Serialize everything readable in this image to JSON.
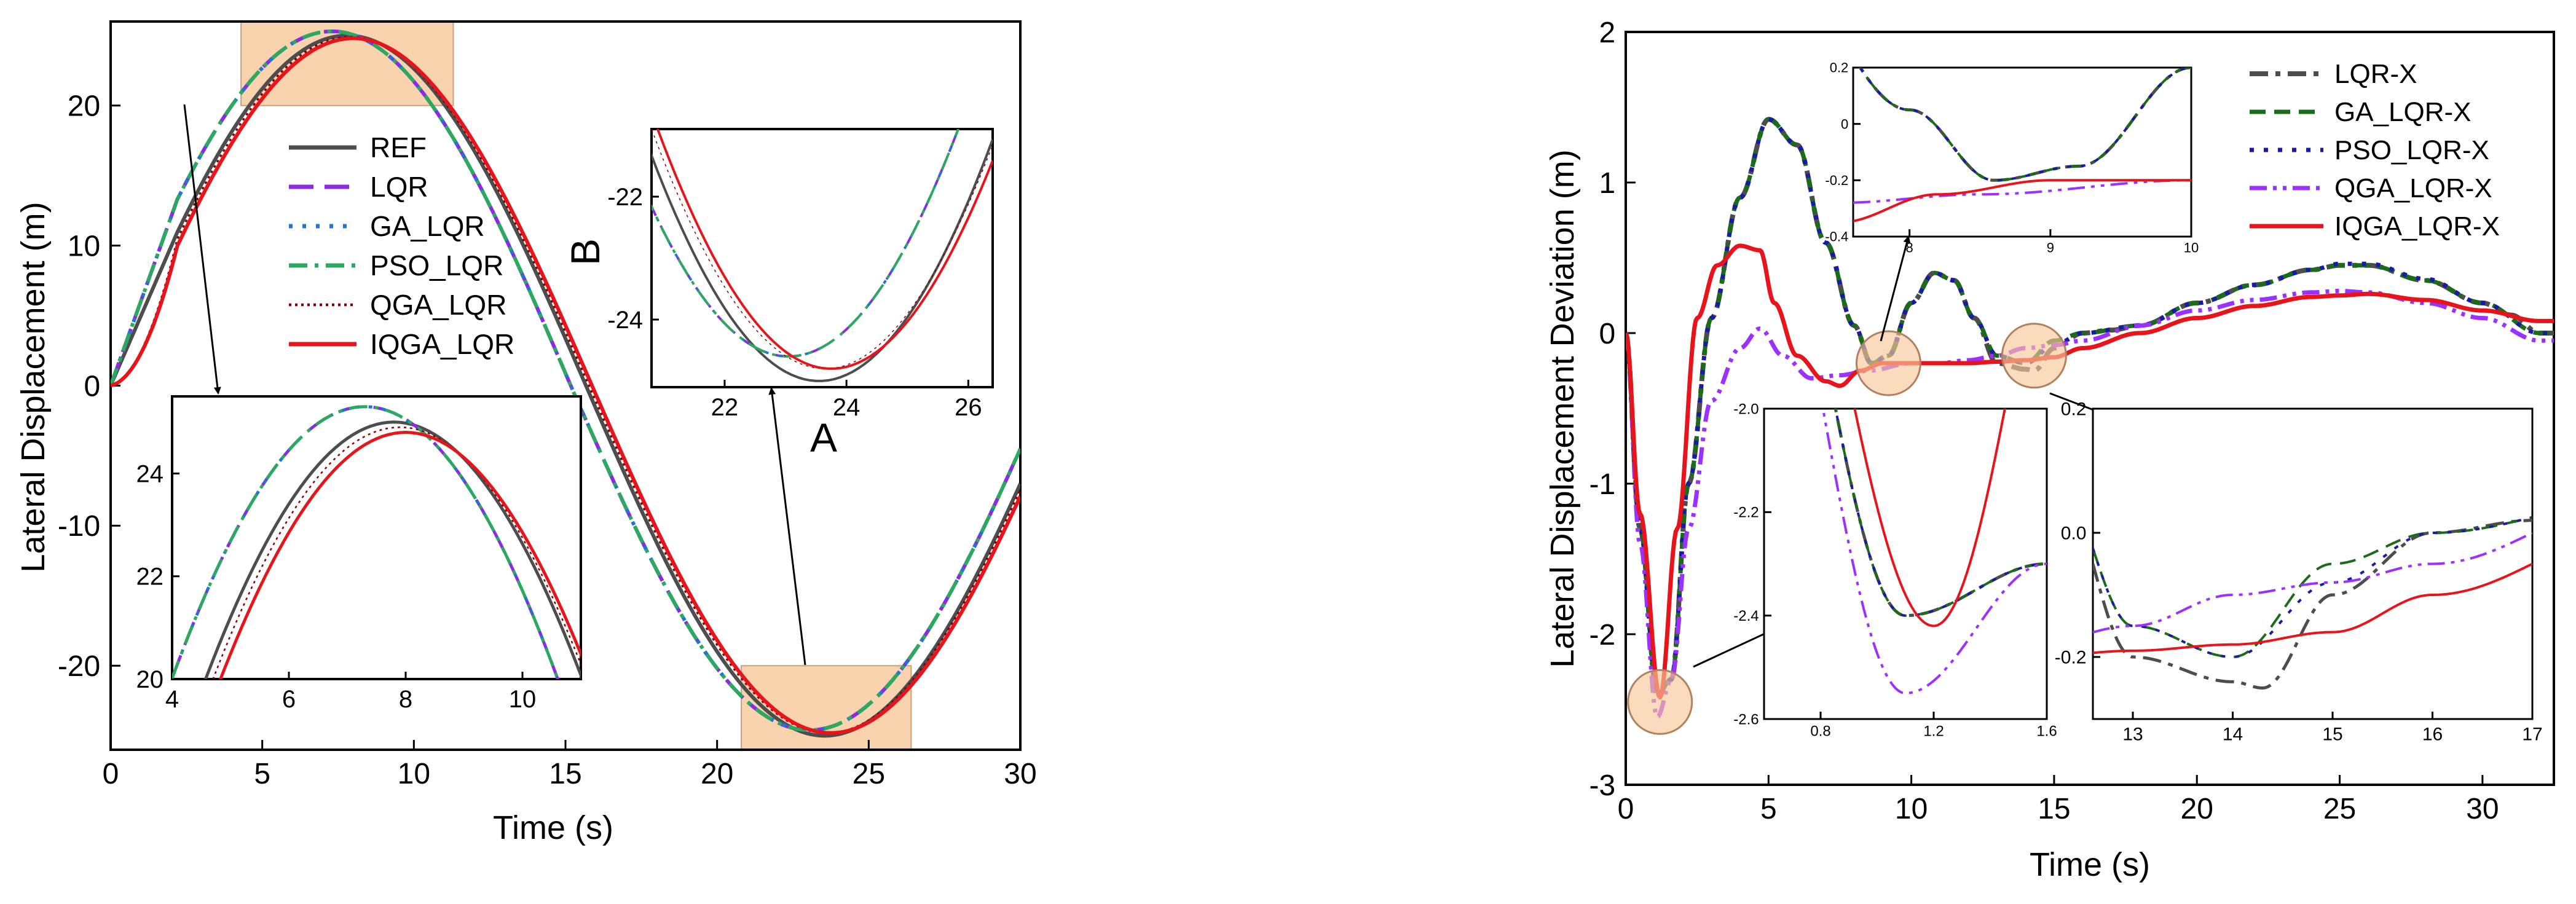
{
  "colors": {
    "REF": "#4d4d4d",
    "LQR": "#8a2be2",
    "GA_LQR": "#1f77d0",
    "PSO_LQR": "#2ca860",
    "QGA_LQR": "#8b0000",
    "IQGA_LQR": "#e8141b",
    "LQR-X": "#4d4d4d",
    "GA_LQR-X": "#1a6b1a",
    "PSO_LQR-X": "#1a1aa8",
    "QGA_LQR-X": "#9b30ff",
    "IQGA_LQR-X": "#e8141b",
    "highlight": "#f8c89a"
  },
  "chart_data": [
    {
      "id": "left-main",
      "type": "line",
      "xlabel": "Time (s)",
      "ylabel": "Lateral Displacement (m)",
      "xlim": [
        0,
        30
      ],
      "ylim": [
        -26,
        26
      ],
      "xticks": [
        "0",
        "5",
        "10",
        "15",
        "20",
        "25",
        "30"
      ],
      "yticks": [
        "-20",
        "-10",
        "0",
        "10",
        "20"
      ],
      "legend": [
        "REF",
        "LQR",
        "GA_LQR",
        "PSO_LQR",
        "QGA_LQR",
        "IQGA_LQR"
      ],
      "series_model": "y = 25*sin(2*pi*(t - t0)/31.5) for t >= ~2s, with a ramp from 0 near t = 0",
      "series": [
        {
          "name": "REF",
          "peak_t": 7.8,
          "peak_y": 25.0,
          "trough_t": 23.5,
          "trough_y": -25.0
        },
        {
          "name": "LQR",
          "peak_t": 7.3,
          "peak_y": 25.3,
          "trough_t": 23.5,
          "trough_y": -24.6
        },
        {
          "name": "GA_LQR",
          "peak_t": 7.3,
          "peak_y": 25.3,
          "trough_t": 23.5,
          "trough_y": -24.6
        },
        {
          "name": "PSO_LQR",
          "peak_t": 7.3,
          "peak_y": 25.3,
          "trough_t": 23.5,
          "trough_y": -24.6
        },
        {
          "name": "QGA_LQR",
          "peak_t": 7.9,
          "peak_y": 24.9,
          "trough_t": 23.6,
          "trough_y": -24.8
        },
        {
          "name": "IQGA_LQR",
          "peak_t": 8.0,
          "peak_y": 24.8,
          "trough_t": 23.6,
          "trough_y": -24.8
        }
      ],
      "highlight_regions": [
        {
          "x": [
            4.3,
            11.3
          ],
          "y": [
            20,
            26
          ]
        },
        {
          "x": [
            20.8,
            26.4
          ],
          "y": [
            -26,
            -20
          ]
        }
      ]
    },
    {
      "id": "left-inset-peak",
      "type": "line",
      "xlim": [
        4,
        11
      ],
      "ylim": [
        20,
        25.5
      ],
      "xticks": [
        "4",
        "6",
        "8",
        "10"
      ],
      "yticks": [
        "20",
        "22",
        "24"
      ]
    },
    {
      "id": "left-inset-trough",
      "type": "line",
      "xlabel": "A",
      "ylabel": "B",
      "xlim": [
        20.8,
        26.4
      ],
      "ylim": [
        -25.1,
        -20.9
      ],
      "xticks": [
        "22",
        "24",
        "26"
      ],
      "yticks": [
        "-22",
        "-24"
      ]
    },
    {
      "id": "right-main",
      "type": "line",
      "xlabel": "Time (s)",
      "ylabel": "Lateral Displacement Deviation (m)",
      "xlim": [
        0,
        32.5
      ],
      "ylim": [
        -3,
        2
      ],
      "xticks": [
        "0",
        "5",
        "10",
        "15",
        "20",
        "25",
        "30"
      ],
      "yticks": [
        "-3",
        "-2",
        "-1",
        "0",
        "1",
        "2"
      ],
      "legend": [
        "LQR-X",
        "GA_LQR-X",
        "PSO_LQR-X",
        "QGA_LQR-X",
        "IQGA_LQR-X"
      ],
      "series": [
        {
          "name": "LQR-X",
          "x": [
            0,
            0.5,
            1.1,
            1.6,
            2.2,
            3,
            4,
            5,
            6,
            7,
            8,
            8.6,
            9.2,
            10,
            10.8,
            11.5,
            12.2,
            13,
            14,
            14.3,
            15,
            16,
            17,
            18,
            20,
            22,
            24,
            25,
            26,
            28,
            30,
            31,
            32
          ],
          "y": [
            0,
            -1.3,
            -2.4,
            -2.3,
            -1.0,
            0.1,
            0.9,
            1.42,
            1.25,
            0.6,
            0.05,
            -0.2,
            -0.15,
            0.2,
            0.4,
            0.35,
            0.1,
            -0.2,
            -0.24,
            -0.25,
            -0.1,
            0.0,
            0.02,
            0.05,
            0.2,
            0.32,
            0.42,
            0.45,
            0.45,
            0.35,
            0.2,
            0.12,
            0.0
          ]
        },
        {
          "name": "GA_LQR-X",
          "x": [
            0,
            0.5,
            1.1,
            1.6,
            2.2,
            3,
            4,
            5,
            6,
            7,
            8,
            8.6,
            9.2,
            10,
            10.8,
            11.5,
            12.2,
            13,
            14,
            15,
            16,
            18,
            20,
            22,
            24,
            25,
            26,
            28,
            30,
            32
          ],
          "y": [
            0,
            -1.3,
            -2.4,
            -2.3,
            -1.0,
            0.1,
            0.9,
            1.42,
            1.25,
            0.6,
            0.05,
            -0.2,
            -0.15,
            0.2,
            0.4,
            0.35,
            0.1,
            -0.15,
            -0.2,
            -0.05,
            0.0,
            0.05,
            0.2,
            0.32,
            0.42,
            0.45,
            0.45,
            0.35,
            0.2,
            0.0
          ]
        },
        {
          "name": "PSO_LQR-X",
          "x": [
            0,
            0.5,
            1.1,
            1.6,
            2.2,
            3,
            4,
            5,
            6,
            7,
            8,
            8.6,
            9.2,
            10,
            10.8,
            11.5,
            12.2,
            13,
            14,
            15,
            16,
            18,
            20,
            22,
            24,
            25,
            26,
            28,
            30,
            32
          ],
          "y": [
            0,
            -1.3,
            -2.4,
            -2.3,
            -1.0,
            0.1,
            0.9,
            1.42,
            1.25,
            0.6,
            0.05,
            -0.2,
            -0.15,
            0.2,
            0.4,
            0.35,
            0.1,
            -0.15,
            -0.2,
            -0.08,
            0.0,
            0.05,
            0.2,
            0.32,
            0.42,
            0.46,
            0.46,
            0.36,
            0.2,
            0.0
          ]
        },
        {
          "name": "QGA_LQR-X",
          "x": [
            0,
            0.5,
            1.1,
            1.6,
            2.2,
            3,
            4,
            4.7,
            5.5,
            6.5,
            7.5,
            8.5,
            10,
            11,
            12,
            13,
            14,
            15,
            16,
            18,
            20,
            22,
            24,
            25,
            26,
            28,
            30,
            32
          ],
          "y": [
            0,
            -1.4,
            -2.55,
            -2.3,
            -1.3,
            -0.45,
            -0.1,
            0.03,
            -0.15,
            -0.3,
            -0.28,
            -0.25,
            -0.2,
            -0.2,
            -0.18,
            -0.15,
            -0.1,
            -0.08,
            -0.05,
            0.05,
            0.15,
            0.22,
            0.27,
            0.28,
            0.27,
            0.2,
            0.1,
            -0.05
          ]
        },
        {
          "name": "IQGA_LQR-X",
          "x": [
            0,
            0.5,
            1.2,
            1.8,
            2.5,
            3.2,
            4,
            4.7,
            5.2,
            6,
            7,
            7.5,
            8.2,
            9,
            10,
            11,
            12,
            13,
            14,
            15,
            16,
            18,
            20,
            22,
            24,
            25,
            26,
            28,
            30,
            32
          ],
          "y": [
            0,
            -1.2,
            -2.42,
            -1.3,
            0.1,
            0.45,
            0.58,
            0.55,
            0.2,
            -0.15,
            -0.32,
            -0.35,
            -0.25,
            -0.2,
            -0.2,
            -0.2,
            -0.2,
            -0.19,
            -0.18,
            -0.16,
            -0.1,
            0.0,
            0.1,
            0.18,
            0.24,
            0.25,
            0.26,
            0.22,
            0.15,
            0.08
          ]
        }
      ],
      "highlight_circles": [
        {
          "x": 1.2,
          "y": -2.45
        },
        {
          "x": 9.2,
          "y": -0.2
        },
        {
          "x": 14.3,
          "y": -0.15
        }
      ]
    },
    {
      "id": "right-inset-top",
      "type": "line",
      "xlim": [
        7.6,
        10
      ],
      "ylim": [
        -0.4,
        0.2
      ],
      "xticks": [
        "8",
        "9",
        "10"
      ],
      "yticks": [
        "0.2",
        "0",
        "-0.2",
        "-0.4"
      ]
    },
    {
      "id": "right-inset-mid",
      "type": "line",
      "xlim": [
        0.6,
        1.6
      ],
      "ylim": [
        -2.6,
        -2.0
      ],
      "xticks": [
        "0.8",
        "1.2",
        "1.6"
      ],
      "yticks": [
        "-2.0",
        "-2.2",
        "-2.4",
        "-2.6"
      ]
    },
    {
      "id": "right-inset-right",
      "type": "line",
      "xlim": [
        12.6,
        17
      ],
      "ylim": [
        -0.3,
        0.2
      ],
      "xticks": [
        "13",
        "14",
        "15",
        "16",
        "17"
      ],
      "yticks": [
        "0.2",
        "0.0",
        "-0.2"
      ]
    }
  ]
}
